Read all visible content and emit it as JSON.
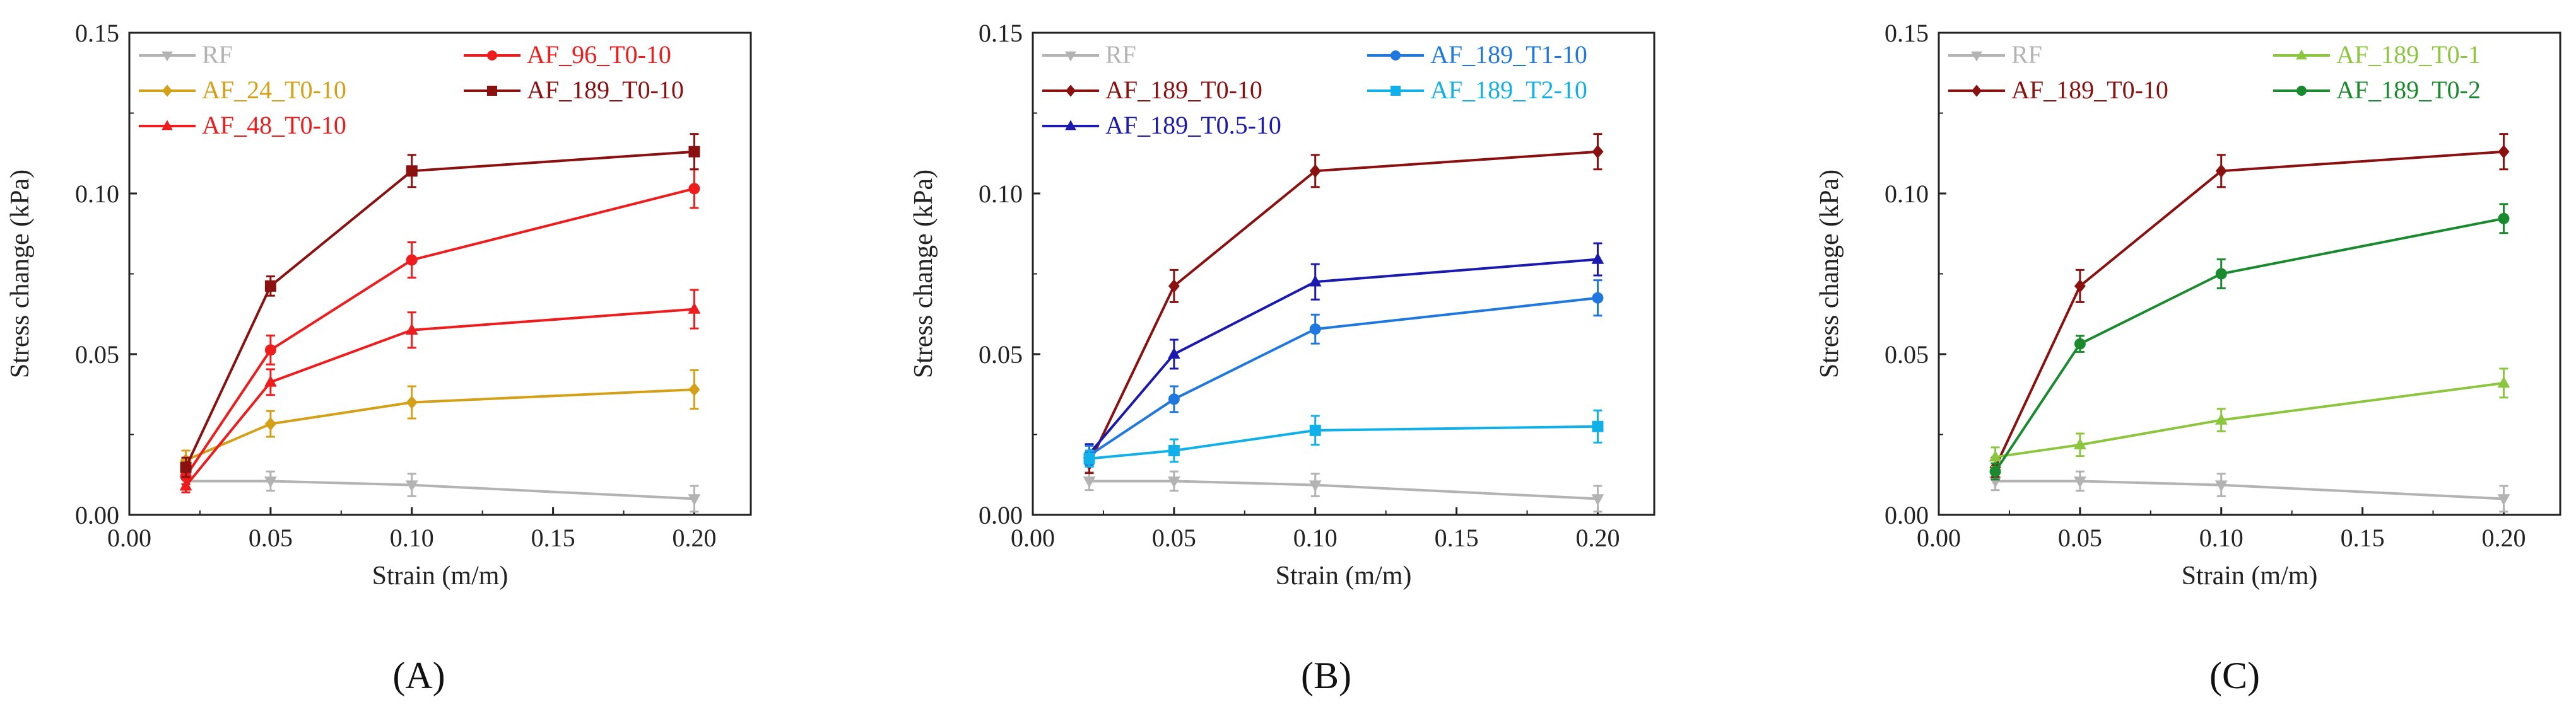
{
  "figure": {
    "panel_captions": [
      "(A)",
      "(B)",
      "(C)"
    ]
  },
  "chart_data": [
    {
      "type": "line",
      "panel": "(A)",
      "xlabel": "Strain (m/m)",
      "ylabel": "Stress change (kPa)",
      "xlim": [
        0.0,
        0.22
      ],
      "ylim": [
        0.0,
        0.15
      ],
      "xticks": [
        "0.00",
        "0.05",
        "0.10",
        "0.15",
        "0.20"
      ],
      "yticks": [
        "0.00",
        "0.05",
        "0.10",
        "0.15"
      ],
      "legend_columns": 2,
      "x": [
        0.02,
        0.05,
        0.1,
        0.2
      ],
      "series": [
        {
          "name": "RF",
          "color": "#b3b3b3",
          "marker": "tri-down",
          "values": [
            0.0105,
            0.0105,
            0.0093,
            0.005
          ],
          "errors": [
            0.0028,
            0.003,
            0.0035,
            0.004
          ],
          "legend_col": 0,
          "legend_row": 0
        },
        {
          "name": "AF_24_T0-10",
          "color": "#d4a017",
          "marker": "diamond",
          "values": [
            0.017,
            0.0283,
            0.035,
            0.039
          ],
          "errors": [
            0.003,
            0.004,
            0.005,
            0.006
          ],
          "legend_col": 0,
          "legend_row": 1
        },
        {
          "name": "AF_48_T0-10",
          "color": "#ee1c1c",
          "marker": "tri-up",
          "values": [
            0.009,
            0.0413,
            0.0575,
            0.064
          ],
          "errors": [
            0.002,
            0.004,
            0.0055,
            0.006
          ],
          "legend_col": 0,
          "legend_row": 2
        },
        {
          "name": "AF_96_T0-10",
          "color": "#ee1c1c",
          "marker": "circle",
          "values": [
            0.012,
            0.0513,
            0.0793,
            0.1015
          ],
          "errors": [
            0.0025,
            0.0045,
            0.0055,
            0.006
          ],
          "legend_col": 1,
          "legend_row": 0
        },
        {
          "name": "AF_189_T0-10",
          "color": "#8b1010",
          "marker": "square",
          "values": [
            0.0148,
            0.0712,
            0.107,
            0.113
          ],
          "errors": [
            0.003,
            0.003,
            0.005,
            0.0055
          ],
          "legend_col": 1,
          "legend_row": 1
        }
      ]
    },
    {
      "type": "line",
      "panel": "(B)",
      "xlabel": "Strain (m/m)",
      "ylabel": "Stress change (kPa)",
      "xlim": [
        0.0,
        0.22
      ],
      "ylim": [
        0.0,
        0.15
      ],
      "xticks": [
        "0.00",
        "0.05",
        "0.10",
        "0.15",
        "0.20"
      ],
      "yticks": [
        "0.00",
        "0.05",
        "0.10",
        "0.15"
      ],
      "legend_columns": 2,
      "x": [
        0.02,
        0.05,
        0.1,
        0.2
      ],
      "series": [
        {
          "name": "RF",
          "color": "#b3b3b3",
          "marker": "tri-down",
          "values": [
            0.0105,
            0.0105,
            0.0093,
            0.005
          ],
          "errors": [
            0.0028,
            0.003,
            0.0035,
            0.004
          ],
          "legend_col": 0,
          "legend_row": 0
        },
        {
          "name": "AF_189_T0-10",
          "color": "#8b1010",
          "marker": "diamond",
          "values": [
            0.016,
            0.0712,
            0.107,
            0.113
          ],
          "errors": [
            0.003,
            0.005,
            0.005,
            0.0055
          ],
          "legend_col": 0,
          "legend_row": 1
        },
        {
          "name": "AF_189_T0.5-10",
          "color": "#1a1ab0",
          "marker": "tri-up",
          "values": [
            0.019,
            0.05,
            0.0725,
            0.0795
          ],
          "errors": [
            0.003,
            0.0045,
            0.0055,
            0.005
          ],
          "legend_col": 0,
          "legend_row": 2
        },
        {
          "name": "AF_189_T1-10",
          "color": "#1f78e0",
          "marker": "circle",
          "values": [
            0.0185,
            0.036,
            0.0578,
            0.0675
          ],
          "errors": [
            0.003,
            0.004,
            0.0045,
            0.0055
          ],
          "legend_col": 1,
          "legend_row": 0
        },
        {
          "name": "AF_189_T2-10",
          "color": "#12b0e8",
          "marker": "square",
          "values": [
            0.0175,
            0.02,
            0.0263,
            0.0275
          ],
          "errors": [
            0.0025,
            0.0035,
            0.0045,
            0.005
          ],
          "legend_col": 1,
          "legend_row": 1
        }
      ]
    },
    {
      "type": "line",
      "panel": "(C)",
      "xlabel": "Strain (m/m)",
      "ylabel": "Stress change (kPa)",
      "xlim": [
        0.0,
        0.22
      ],
      "ylim": [
        0.0,
        0.15
      ],
      "xticks": [
        "0.00",
        "0.05",
        "0.10",
        "0.15",
        "0.20"
      ],
      "yticks": [
        "0.00",
        "0.05",
        "0.10",
        "0.15"
      ],
      "legend_columns": 2,
      "x": [
        0.02,
        0.05,
        0.1,
        0.2
      ],
      "series": [
        {
          "name": "RF",
          "color": "#b3b3b3",
          "marker": "tri-down",
          "values": [
            0.0105,
            0.0105,
            0.0093,
            0.005
          ],
          "errors": [
            0.0028,
            0.003,
            0.0035,
            0.004
          ],
          "legend_col": 0,
          "legend_row": 0
        },
        {
          "name": "AF_189_T0-10",
          "color": "#8b1010",
          "marker": "diamond",
          "values": [
            0.0148,
            0.0712,
            0.107,
            0.113
          ],
          "errors": [
            0.003,
            0.005,
            0.005,
            0.0055
          ],
          "legend_col": 0,
          "legend_row": 1
        },
        {
          "name": "AF_189_T0-1",
          "color": "#8cc63f",
          "marker": "tri-up",
          "values": [
            0.018,
            0.0218,
            0.0295,
            0.041
          ],
          "errors": [
            0.003,
            0.0035,
            0.0035,
            0.0045
          ],
          "legend_col": 1,
          "legend_row": 0
        },
        {
          "name": "AF_189_T0-2",
          "color": "#1a8a2e",
          "marker": "circle",
          "values": [
            0.0135,
            0.0532,
            0.075,
            0.0922
          ],
          "errors": [
            0.0025,
            0.0025,
            0.0045,
            0.0045
          ],
          "legend_col": 1,
          "legend_row": 1
        }
      ]
    }
  ]
}
